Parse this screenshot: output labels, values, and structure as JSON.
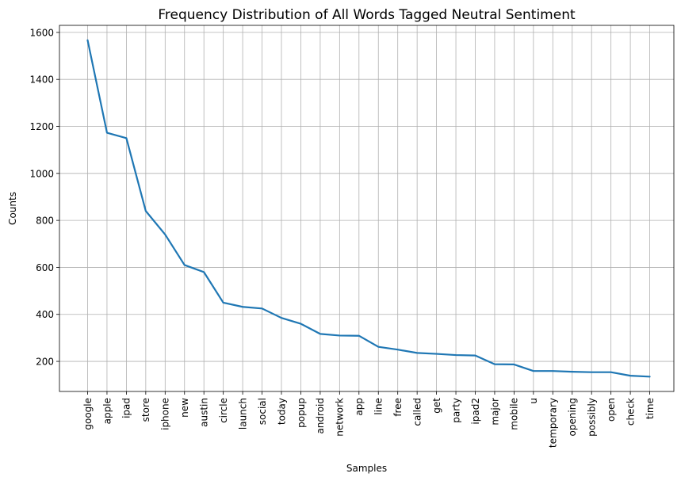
{
  "chart_data": {
    "type": "line",
    "title": "Frequency Distribution of All Words Tagged Neutral Sentiment",
    "xlabel": "Samples",
    "ylabel": "Counts",
    "categories": [
      "google",
      "apple",
      "ipad",
      "store",
      "iphone",
      "new",
      "austin",
      "circle",
      "launch",
      "social",
      "today",
      "popup",
      "android",
      "network",
      "app",
      "line",
      "free",
      "called",
      "get",
      "party",
      "ipad2",
      "major",
      "mobile",
      "u",
      "temporary",
      "opening",
      "possibly",
      "open",
      "check",
      "time"
    ],
    "values": [
      1567,
      1173,
      1150,
      840,
      740,
      610,
      580,
      450,
      432,
      425,
      385,
      360,
      317,
      310,
      309,
      262,
      250,
      236,
      232,
      227,
      225,
      188,
      187,
      159,
      159,
      156,
      154,
      154,
      139,
      135
    ],
    "yticks": [
      200,
      400,
      600,
      800,
      1000,
      1200,
      1400,
      1600
    ],
    "ylim": [
      72,
      1630
    ],
    "grid": true,
    "color": "#1f77b4"
  }
}
